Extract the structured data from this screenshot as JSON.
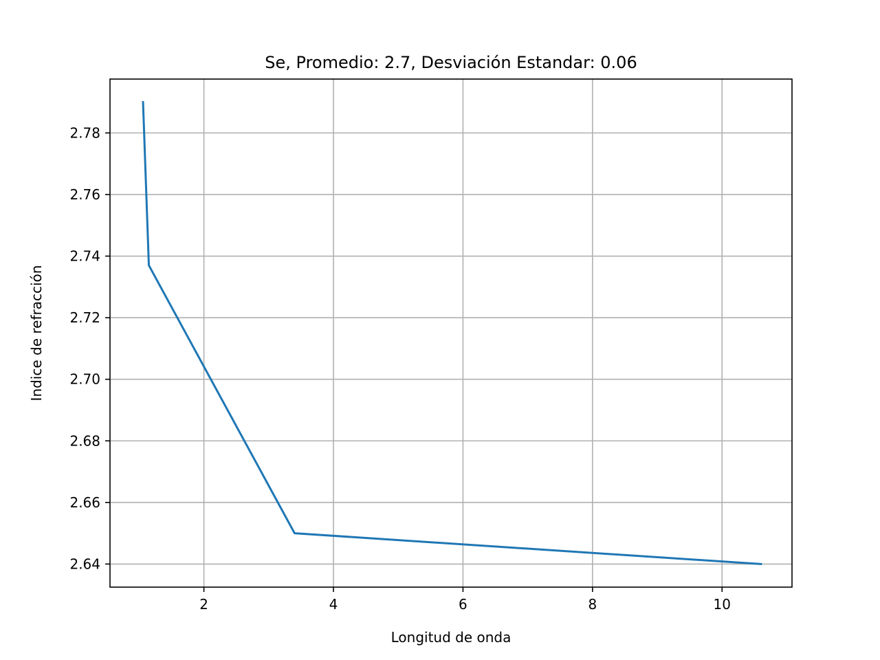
{
  "chart_data": {
    "type": "line",
    "title": "Se, Promedio: 2.7, Desviación Estandar: 0.06",
    "xlabel": "Longitud de onda",
    "ylabel": "Indice de refracción",
    "xlim": [
      0.55,
      11.08
    ],
    "ylim": [
      2.6325,
      2.7975
    ],
    "x_ticks": [
      2,
      4,
      6,
      8,
      10
    ],
    "x_tick_labels": [
      "2",
      "4",
      "6",
      "8",
      "10"
    ],
    "y_ticks": [
      2.64,
      2.66,
      2.68,
      2.7,
      2.72,
      2.74,
      2.76,
      2.78
    ],
    "y_tick_labels": [
      "2.64",
      "2.66",
      "2.68",
      "2.70",
      "2.72",
      "2.74",
      "2.76",
      "2.78"
    ],
    "grid": true,
    "series": [
      {
        "color": "#1f77b4",
        "x": [
          1.06,
          1.15,
          3.4,
          10.6
        ],
        "y": [
          2.79,
          2.737,
          2.65,
          2.64
        ]
      }
    ]
  }
}
